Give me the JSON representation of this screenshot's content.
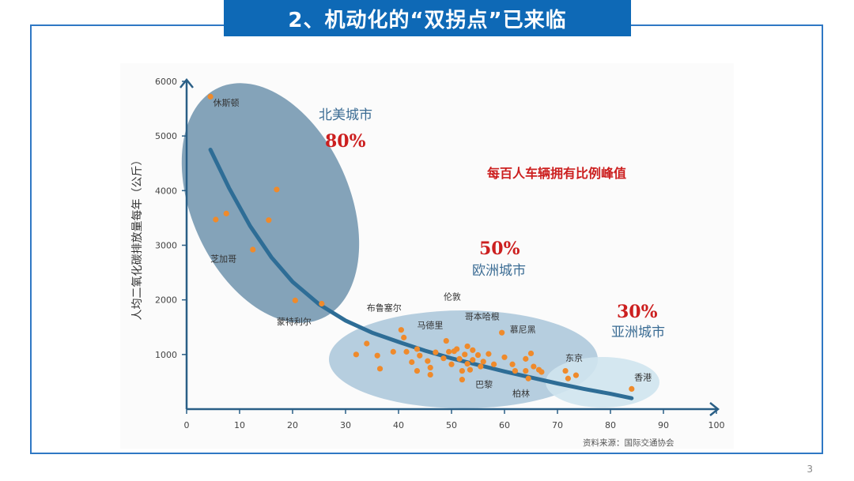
{
  "slide": {
    "title": "2、机动化的“双拐点”已来临",
    "page_number": "3",
    "source": "资料来源：国际交通协会"
  },
  "colors": {
    "title_bg": "#0e69b6",
    "frame": "#2f78c4",
    "axis": "#2a5f86",
    "curve": "#2e6d96",
    "point": "#ef8a2b",
    "north_america_ellipse": "#6f93ad",
    "europe_ellipse": "#a9c5d9",
    "asia_ellipse": "#cfe4ee",
    "group_label": "#3b6c94",
    "percent": "#cc1f1f"
  },
  "chart_data": {
    "type": "scatter",
    "ylabel": "人均二氧化碳排放量每年（公斤）",
    "xlabel": "",
    "xlim": [
      0,
      100
    ],
    "ylim": [
      0,
      6000
    ],
    "xticks": [
      "0",
      "10",
      "20",
      "30",
      "40",
      "50",
      "60",
      "70",
      "80",
      "90",
      "100"
    ],
    "yticks": [
      "1000",
      "2000",
      "3000",
      "4000",
      "5000",
      "6000"
    ],
    "annotation": "每百人车辆拥有比例峰值",
    "groups": [
      {
        "name": "北美城市",
        "percent": "80%"
      },
      {
        "name": "欧洲城市",
        "percent": "50%"
      },
      {
        "name": "亚洲城市",
        "percent": "30%"
      }
    ],
    "trend": {
      "points": [
        [
          4.5,
          4750
        ],
        [
          8,
          4050
        ],
        [
          12,
          3350
        ],
        [
          16,
          2780
        ],
        [
          20,
          2330
        ],
        [
          25,
          1920
        ],
        [
          30,
          1620
        ],
        [
          35,
          1400
        ],
        [
          40,
          1230
        ],
        [
          45,
          1070
        ],
        [
          50,
          930
        ],
        [
          55,
          810
        ],
        [
          60,
          690
        ],
        [
          65,
          580
        ],
        [
          70,
          470
        ],
        [
          75,
          370
        ],
        [
          80,
          280
        ],
        [
          84,
          200
        ]
      ]
    },
    "labels": [
      {
        "text": "休斯顿",
        "x": 5,
        "y": 5550
      },
      {
        "text": "芝加哥",
        "x": 4.5,
        "y": 2700
      },
      {
        "text": "蒙特利尔",
        "x": 17,
        "y": 1550
      },
      {
        "text": "布鲁塞尔",
        "x": 34,
        "y": 1800
      },
      {
        "text": "伦敦",
        "x": 48.5,
        "y": 2000
      },
      {
        "text": "马德里",
        "x": 43.5,
        "y": 1480
      },
      {
        "text": "哥本哈根",
        "x": 52.5,
        "y": 1640
      },
      {
        "text": "慕尼黑",
        "x": 61,
        "y": 1400
      },
      {
        "text": "巴黎",
        "x": 54.5,
        "y": 400
      },
      {
        "text": "柏林",
        "x": 61.5,
        "y": 230
      },
      {
        "text": "东京",
        "x": 71.5,
        "y": 880
      },
      {
        "text": "香港",
        "x": 84.5,
        "y": 530
      }
    ],
    "points": [
      {
        "x": 4.5,
        "y": 5720
      },
      {
        "x": 5.5,
        "y": 3470
      },
      {
        "x": 7.5,
        "y": 3580
      },
      {
        "x": 15.5,
        "y": 3460
      },
      {
        "x": 17,
        "y": 4020
      },
      {
        "x": 12.5,
        "y": 2920
      },
      {
        "x": 20.5,
        "y": 1990
      },
      {
        "x": 25.5,
        "y": 1930
      },
      {
        "x": 32,
        "y": 1000
      },
      {
        "x": 34,
        "y": 1200
      },
      {
        "x": 36,
        "y": 980
      },
      {
        "x": 36.5,
        "y": 740
      },
      {
        "x": 39,
        "y": 1050
      },
      {
        "x": 40.5,
        "y": 1450
      },
      {
        "x": 41,
        "y": 1310
      },
      {
        "x": 41.5,
        "y": 1050
      },
      {
        "x": 42.5,
        "y": 860
      },
      {
        "x": 43.5,
        "y": 1100
      },
      {
        "x": 43.5,
        "y": 700
      },
      {
        "x": 44,
        "y": 980
      },
      {
        "x": 45.5,
        "y": 880
      },
      {
        "x": 46,
        "y": 760
      },
      {
        "x": 46,
        "y": 630
      },
      {
        "x": 47,
        "y": 1040
      },
      {
        "x": 48.5,
        "y": 930
      },
      {
        "x": 49,
        "y": 1250
      },
      {
        "x": 49.5,
        "y": 1050
      },
      {
        "x": 50,
        "y": 820
      },
      {
        "x": 50.5,
        "y": 1060
      },
      {
        "x": 51,
        "y": 1100
      },
      {
        "x": 51.5,
        "y": 920
      },
      {
        "x": 52,
        "y": 700
      },
      {
        "x": 52,
        "y": 540
      },
      {
        "x": 52.5,
        "y": 1000
      },
      {
        "x": 53,
        "y": 1150
      },
      {
        "x": 53,
        "y": 830
      },
      {
        "x": 53.5,
        "y": 720
      },
      {
        "x": 54,
        "y": 1080
      },
      {
        "x": 54,
        "y": 900
      },
      {
        "x": 55,
        "y": 990
      },
      {
        "x": 55.5,
        "y": 780
      },
      {
        "x": 56,
        "y": 870
      },
      {
        "x": 57,
        "y": 1010
      },
      {
        "x": 58,
        "y": 820
      },
      {
        "x": 59.5,
        "y": 1400
      },
      {
        "x": 60,
        "y": 950
      },
      {
        "x": 61.5,
        "y": 820
      },
      {
        "x": 62,
        "y": 700
      },
      {
        "x": 64,
        "y": 920
      },
      {
        "x": 64,
        "y": 700
      },
      {
        "x": 64.5,
        "y": 560
      },
      {
        "x": 65,
        "y": 1020
      },
      {
        "x": 65.5,
        "y": 780
      },
      {
        "x": 66.5,
        "y": 720
      },
      {
        "x": 67,
        "y": 680
      },
      {
        "x": 71.5,
        "y": 700
      },
      {
        "x": 72,
        "y": 560
      },
      {
        "x": 73.5,
        "y": 620
      },
      {
        "x": 84,
        "y": 370
      }
    ]
  }
}
